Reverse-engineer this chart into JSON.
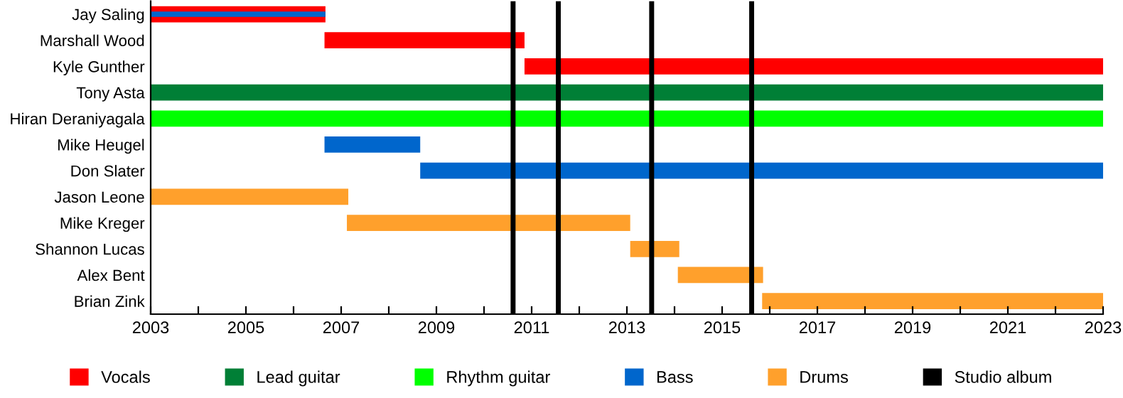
{
  "chart_data": {
    "type": "bar",
    "orientation": "horizontal",
    "categories": [
      "Jay Saling",
      "Marshall Wood",
      "Kyle Gunther",
      "Tony Asta",
      "Hiran Deraniyagala",
      "Mike Heugel",
      "Don Slater",
      "Jason Leone",
      "Mike Kreger",
      "Shannon Lucas",
      "Alex Bent",
      "Brian Zink"
    ],
    "series": [
      {
        "name": "Vocals",
        "color": "#ff0000",
        "base": [
          2003,
          2006.65,
          2010.85,
          null,
          null,
          null,
          null,
          null,
          null,
          null,
          null,
          null
        ],
        "values": [
          3.67,
          4.2,
          12.15,
          null,
          null,
          null,
          null,
          null,
          null,
          null,
          null,
          null
        ]
      },
      {
        "name": "Lead guitar",
        "color": "#007f36",
        "base": [
          null,
          null,
          null,
          2003,
          null,
          null,
          null,
          null,
          null,
          null,
          null,
          null
        ],
        "values": [
          null,
          null,
          null,
          20,
          null,
          null,
          null,
          null,
          null,
          null,
          null,
          null
        ]
      },
      {
        "name": "Rhythm guitar",
        "color": "#00ff00",
        "base": [
          null,
          null,
          null,
          null,
          2003,
          null,
          null,
          null,
          null,
          null,
          null,
          null
        ],
        "values": [
          null,
          null,
          null,
          null,
          20,
          null,
          null,
          null,
          null,
          null,
          null,
          null
        ]
      },
      {
        "name": "Bass",
        "color": "#0066cc",
        "base": [
          2003,
          null,
          null,
          null,
          null,
          2006.65,
          2008.66,
          null,
          null,
          null,
          null,
          null
        ],
        "values": [
          3.67,
          null,
          null,
          null,
          null,
          2.01,
          14.34,
          null,
          null,
          null,
          null,
          null
        ]
      },
      {
        "name": "Drums",
        "color": "#ffa02c",
        "base": [
          null,
          null,
          null,
          null,
          null,
          null,
          null,
          2003,
          2007.12,
          2013.07,
          2014.07,
          2015.84
        ],
        "values": [
          null,
          null,
          null,
          null,
          null,
          null,
          null,
          4.15,
          5.95,
          1.03,
          1.79,
          7.16
        ]
      }
    ],
    "ref_lines": [
      {
        "axis": "x",
        "value": 2010.61,
        "label": "Studio album",
        "color": "#000000"
      },
      {
        "axis": "x",
        "value": 2011.56,
        "color": "#000000"
      },
      {
        "axis": "x",
        "value": 2013.52,
        "color": "#000000"
      },
      {
        "axis": "x",
        "value": 2015.62,
        "color": "#000000"
      }
    ],
    "xlim": [
      2003,
      2023
    ],
    "xticks": [
      2003,
      {
        "value": 2004,
        "label": null
      },
      2005,
      {
        "value": 2006,
        "label": null
      },
      2007,
      {
        "value": 2008,
        "label": null
      },
      2009,
      {
        "value": 2010,
        "label": null
      },
      2011,
      {
        "value": 2012,
        "label": null
      },
      2013,
      {
        "value": 2014,
        "label": null
      },
      2015,
      {
        "value": 2016,
        "label": null
      },
      2017,
      {
        "value": 2018,
        "label": null
      },
      2019,
      {
        "value": 2020,
        "label": null
      },
      2021,
      {
        "value": 2022,
        "label": null
      },
      2023
    ],
    "legend": "bottom"
  }
}
